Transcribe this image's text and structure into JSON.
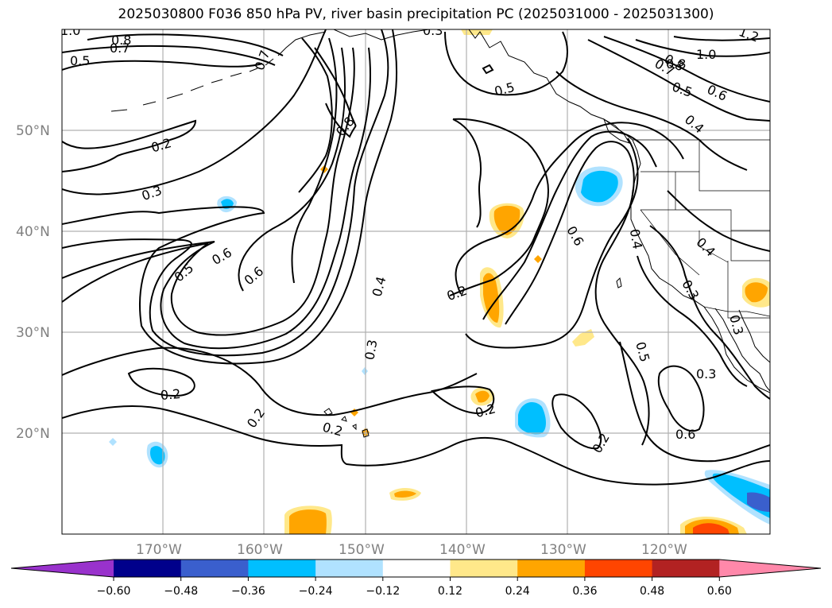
{
  "title": "2025030800 F036 850 hPa PV, river basin precipitation PC (2025031000 - 2025031300)",
  "map": {
    "lon_range": [
      -180,
      -110
    ],
    "lat_range": [
      10,
      60
    ],
    "lat_ticks": [
      "20°N",
      "30°N",
      "40°N",
      "50°N"
    ],
    "lon_ticks": [
      "170°W",
      "160°W",
      "150°W",
      "140°W",
      "130°W",
      "120°W"
    ]
  },
  "contour_labels": [
    "1.0",
    "0.8",
    "0.7",
    "0.5",
    "0.2",
    "0.3",
    "0.6",
    "0.5",
    "0.6",
    "0.7",
    "0.8",
    "0.4",
    "0.3",
    "0.3",
    "0.2",
    "0.2",
    "0.2",
    "0.2",
    "0.5",
    "0.2",
    "0.6",
    "0.6",
    "0.4",
    "0.4",
    "0.3",
    "0.3",
    "0.5",
    "0.3",
    "0.8",
    "0.7",
    "1.0",
    "0.8",
    "0.5",
    "0.6",
    "0.4",
    "1.2",
    "0.2"
  ],
  "colorbar": {
    "ticks": [
      "−0.60",
      "−0.48",
      "−0.36",
      "−0.24",
      "−0.12",
      "0.12",
      "0.24",
      "0.36",
      "0.48",
      "0.60"
    ],
    "colors": [
      "#9932cc",
      "#00008b",
      "#3a5fcd",
      "#00bfff",
      "#b0e2ff",
      "#ffffff",
      "#ffe88a",
      "#ffa500",
      "#ff4500",
      "#b22222",
      "#ff88aa"
    ]
  }
}
